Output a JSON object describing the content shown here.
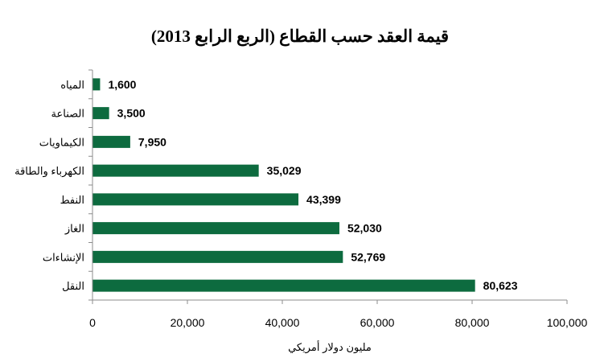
{
  "chart_data": {
    "type": "bar",
    "orientation": "horizontal",
    "title": "قيمة العقد حسب القطاع (الربع الرابع 2013)",
    "xlabel": "مليون دولار أمريكي",
    "ylabel": "",
    "xlim": [
      0,
      100000
    ],
    "x_ticks": [
      0,
      20000,
      40000,
      60000,
      80000,
      100000
    ],
    "x_tick_labels": [
      "0",
      "20,000",
      "40,000",
      "60,000",
      "80,000",
      "100,000"
    ],
    "grid": false,
    "legend": "none",
    "categories": [
      "المياه",
      "الصناعة",
      "الكيماويات",
      "الكهرباء والطاقة",
      "النفط",
      "الغاز",
      "الإنشاءات",
      "النقل"
    ],
    "values": [
      1600,
      3500,
      7950,
      35029,
      43399,
      52030,
      52769,
      80623
    ],
    "value_labels": [
      "1,600",
      "3,500",
      "7,950",
      "35,029",
      "43,399",
      "52,030",
      "52,769",
      "80,623"
    ],
    "bar_color": "#0d6b3f"
  }
}
